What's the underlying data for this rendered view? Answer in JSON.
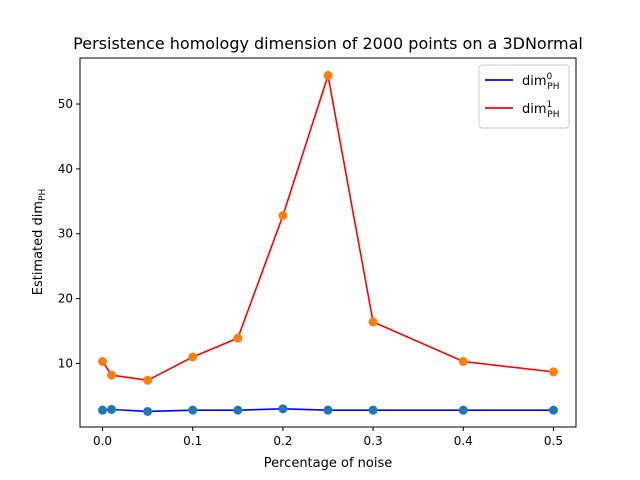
{
  "chart_data": {
    "type": "line",
    "title": "Persistence homology dimension of 2000 points on a 3DNormal",
    "xlabel": "Percentage of noise",
    "ylabel": {
      "base": "Estimated dim",
      "sub": "PH"
    },
    "x": [
      0.0,
      0.01,
      0.05,
      0.1,
      0.15,
      0.2,
      0.25,
      0.3,
      0.4,
      0.5
    ],
    "xlim": [
      -0.025,
      0.525
    ],
    "ylim": [
      0.2,
      57.1
    ],
    "xticks": [
      {
        "value": 0.0,
        "label": "0.0"
      },
      {
        "value": 0.1,
        "label": "0.1"
      },
      {
        "value": 0.2,
        "label": "0.2"
      },
      {
        "value": 0.3,
        "label": "0.3"
      },
      {
        "value": 0.4,
        "label": "0.4"
      },
      {
        "value": 0.5,
        "label": "0.5"
      }
    ],
    "yticks": [
      {
        "value": 10,
        "label": "10"
      },
      {
        "value": 20,
        "label": "20"
      },
      {
        "value": 30,
        "label": "30"
      },
      {
        "value": 40,
        "label": "40"
      },
      {
        "value": 50,
        "label": "50"
      }
    ],
    "grid": false,
    "legend_position": "top-right",
    "series": [
      {
        "label": {
          "base": "dim",
          "sup": "0",
          "sub": "PH"
        },
        "line_color": "#0000ff",
        "marker_color": "#1f77b4",
        "values": [
          2.8,
          2.9,
          2.6,
          2.8,
          2.8,
          3.0,
          2.8,
          2.8,
          2.8,
          2.8
        ]
      },
      {
        "label": {
          "base": "dim",
          "sup": "1",
          "sub": "PH"
        },
        "line_color": "#ff0000",
        "marker_color": "#ff7f0e",
        "values": [
          10.3,
          8.2,
          7.4,
          11.0,
          13.9,
          32.8,
          54.4,
          16.4,
          10.3,
          8.7
        ]
      }
    ]
  }
}
